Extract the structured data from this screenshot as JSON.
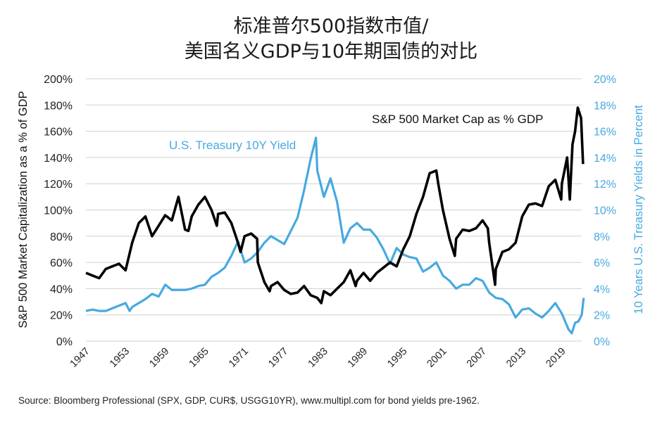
{
  "title_line1": "标准普尔500指数市值/",
  "title_line2": "美国名义GDP与10年期国债的对比",
  "source": "Source: Bloomberg Professional (SPX, GDP, CUR$, USGG10YR), www.multipl.com for bond yields pre-1962.",
  "colors": {
    "marketcap": "#000000",
    "treasury": "#47a9e1",
    "axis_right": "#47a9e1",
    "gridline": "#d0d0d0"
  },
  "chart_data": {
    "type": "line",
    "ylabel": "S&P 500 Market Capitalization as a % of GDP",
    "ylabel_right": "10 Years U.S. Treasury Yields in Percent",
    "ylim": [
      0,
      200
    ],
    "ylim_right": [
      0,
      20
    ],
    "xlim": [
      1947,
      2022
    ],
    "x_ticks": [
      "1947",
      "1953",
      "1959",
      "1965",
      "1971",
      "1977",
      "1983",
      "1989",
      "1995",
      "2001",
      "2007",
      "2013",
      "2019"
    ],
    "y_ticks": [
      "0%",
      "20%",
      "40%",
      "60%",
      "80%",
      "100%",
      "120%",
      "140%",
      "160%",
      "180%",
      "200%"
    ],
    "y_ticks_right": [
      "0%",
      "2%",
      "4%",
      "6%",
      "8%",
      "10%",
      "12%",
      "14%",
      "16%",
      "18%",
      "20%"
    ],
    "series": [
      {
        "name": "S&P 500 Market Cap as % GDP",
        "axis": "left",
        "x": [
          1947,
          1948,
          1949,
          1950,
          1951,
          1952,
          1953,
          1954,
          1955,
          1956,
          1957,
          1958,
          1959,
          1960,
          1961,
          1962,
          1962.5,
          1963,
          1964,
          1965,
          1966,
          1966.8,
          1967,
          1968,
          1969,
          1970,
          1970.4,
          1971,
          1972,
          1972.9,
          1973,
          1974,
          1974.8,
          1975,
          1976,
          1977,
          1978,
          1979,
          1980,
          1981,
          1982,
          1982.6,
          1983,
          1984,
          1985,
          1986,
          1987,
          1987.8,
          1988,
          1989,
          1990,
          1991,
          1992,
          1993,
          1994,
          1995,
          1996,
          1997,
          1998,
          1999,
          2000,
          2000.3,
          2001,
          2002,
          2002.8,
          2003,
          2004,
          2005,
          2006,
          2007,
          2007.8,
          2008,
          2008.9,
          2009,
          2010,
          2011,
          2012,
          2013,
          2014,
          2015,
          2016,
          2017,
          2018,
          2018.9,
          2019,
          2019.8,
          2020.2,
          2020.6,
          2021,
          2021.4,
          2021.9,
          2022.2
        ],
        "values": [
          52,
          50,
          48,
          55,
          57,
          59,
          54,
          75,
          90,
          95,
          80,
          88,
          96,
          92,
          110,
          85,
          84,
          95,
          104,
          110,
          100,
          88,
          97,
          98,
          90,
          75,
          68,
          80,
          82,
          78,
          60,
          45,
          38,
          42,
          45,
          39,
          36,
          37,
          42,
          35,
          33,
          29,
          38,
          35,
          40,
          45,
          54,
          42,
          46,
          52,
          46,
          52,
          56,
          60,
          57,
          70,
          80,
          97,
          110,
          128,
          130,
          120,
          100,
          78,
          65,
          78,
          85,
          84,
          86,
          92,
          86,
          75,
          43,
          55,
          68,
          70,
          75,
          95,
          104,
          105,
          103,
          118,
          123,
          108,
          120,
          140,
          108,
          150,
          160,
          178,
          170,
          135
        ]
      },
      {
        "name": "U.S. Treasury 10Y Yield",
        "axis": "right",
        "x": [
          1947,
          1948,
          1949,
          1950,
          1951,
          1952,
          1953,
          1953.6,
          1954,
          1955,
          1956,
          1957,
          1958,
          1959,
          1960,
          1961,
          1962,
          1963,
          1964,
          1965,
          1966,
          1967,
          1968,
          1969,
          1970,
          1971,
          1972,
          1973,
          1974,
          1975,
          1976,
          1977,
          1978,
          1979,
          1980,
          1981,
          1981.8,
          1982,
          1983,
          1984,
          1985,
          1986,
          1987,
          1988,
          1989,
          1990,
          1991,
          1992,
          1993,
          1994,
          1995,
          1996,
          1997,
          1998,
          1999,
          2000,
          2001,
          2002,
          2003,
          2004,
          2005,
          2006,
          2007,
          2008,
          2009,
          2010,
          2011,
          2012,
          2013,
          2014,
          2015,
          2016,
          2017,
          2018,
          2019,
          2020,
          2020.5,
          2021,
          2021.5,
          2022,
          2022.3
        ],
        "values": [
          2.3,
          2.4,
          2.3,
          2.3,
          2.5,
          2.7,
          2.9,
          2.3,
          2.6,
          2.9,
          3.2,
          3.6,
          3.4,
          4.3,
          3.9,
          3.9,
          3.9,
          4.0,
          4.2,
          4.3,
          4.9,
          5.2,
          5.6,
          6.5,
          7.6,
          6.0,
          6.3,
          6.8,
          7.5,
          8.0,
          7.7,
          7.4,
          8.4,
          9.4,
          11.5,
          13.9,
          15.5,
          13.0,
          11.0,
          12.4,
          10.6,
          7.5,
          8.6,
          9.0,
          8.5,
          8.5,
          7.9,
          7.0,
          5.9,
          7.1,
          6.6,
          6.4,
          6.3,
          5.3,
          5.6,
          6.0,
          5.0,
          4.6,
          4.0,
          4.3,
          4.3,
          4.8,
          4.6,
          3.7,
          3.3,
          3.2,
          2.8,
          1.8,
          2.4,
          2.5,
          2.1,
          1.8,
          2.3,
          2.9,
          2.1,
          0.9,
          0.6,
          1.4,
          1.5,
          2.0,
          3.3
        ]
      }
    ],
    "annotations": [
      "S&P 500 Market Cap as % GDP",
      "U.S. Treasury 10Y Yield"
    ]
  }
}
